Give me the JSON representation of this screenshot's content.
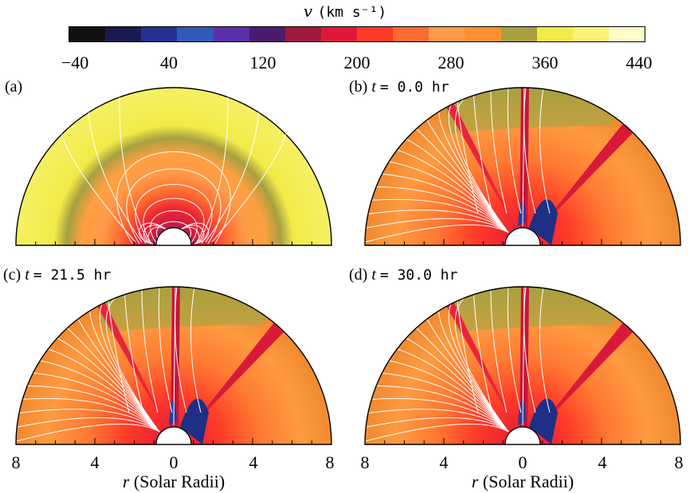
{
  "colorbar": {
    "title_var": "v",
    "title_unit": "(km s⁻¹)",
    "colors": [
      "#101010",
      "#1a1a50",
      "#263090",
      "#2f5ab8",
      "#5a30a8",
      "#4a1c6e",
      "#a0183c",
      "#e01838",
      "#ff3a28",
      "#ff6a30",
      "#ff9a48",
      "#ff9030",
      "#a8a040",
      "#f2ea48",
      "#f8f27a",
      "#fcfcc8"
    ],
    "tick_labels": [
      "−40",
      "40",
      "120",
      "200",
      "280",
      "360",
      "440"
    ]
  },
  "panels": [
    {
      "id": "a",
      "letter": "(a)",
      "time_var": "",
      "time_text": "",
      "style": "initial"
    },
    {
      "id": "b",
      "letter": "(b)",
      "time_var": "t",
      "time_text": "= 0.0 hr",
      "style": "evolved"
    },
    {
      "id": "c",
      "letter": "(c)",
      "time_var": "t",
      "time_text": "= 21.5 hr",
      "style": "evolved"
    },
    {
      "id": "d",
      "letter": "(d)",
      "time_var": "t",
      "time_text": "= 30.0 hr",
      "style": "evolved"
    }
  ],
  "x_axis": {
    "tick_labels": [
      "8",
      "4",
      "0",
      "4",
      "8"
    ],
    "label_var": "r",
    "label_text": "(Solar Radii)"
  }
}
